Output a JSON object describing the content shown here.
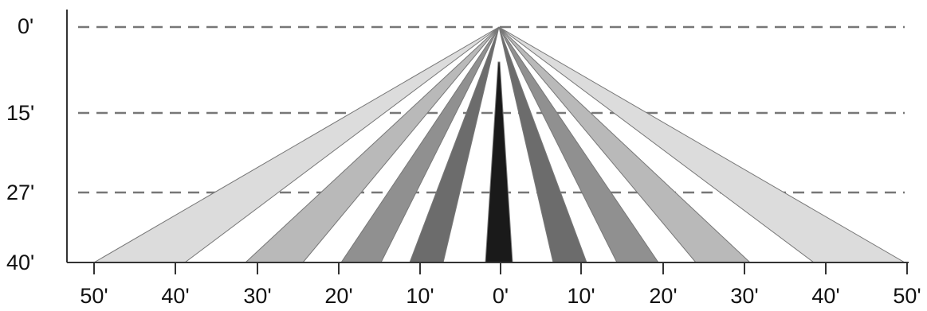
{
  "diagram": {
    "left_axis_labels": [
      "0'",
      "15'",
      "27'",
      "40'"
    ],
    "bottom_axis_labels": [
      "50'",
      "40'",
      "30'",
      "20'",
      "10'",
      "0'",
      "10'",
      "20'",
      "30'",
      "40'",
      "50'"
    ],
    "beams": [
      {
        "side": "left",
        "fill": "#dcdcdc"
      },
      {
        "side": "left",
        "fill": "#b9b9b9"
      },
      {
        "side": "left",
        "fill": "#909090"
      },
      {
        "side": "left",
        "fill": "#6c6c6c"
      },
      {
        "side": "center",
        "fill": "#1a1a1a"
      },
      {
        "side": "right",
        "fill": "#6c6c6c"
      },
      {
        "side": "right",
        "fill": "#909090"
      },
      {
        "side": "right",
        "fill": "#b9b9b9"
      },
      {
        "side": "right",
        "fill": "#dcdcdc"
      }
    ],
    "colors": {
      "axis": "#333333",
      "dash": "#777777",
      "beam_stroke": "#777777"
    }
  }
}
